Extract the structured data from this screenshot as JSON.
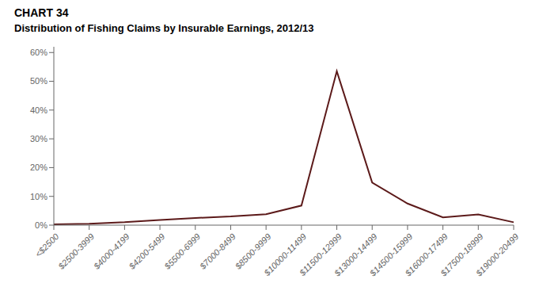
{
  "chart_data": {
    "type": "line",
    "title": "CHART 34",
    "subtitle": "Distribution of Fishing Claims by Insurable Earnings, 2012/13",
    "categories": [
      "<$2500",
      "$2500-3999",
      "$4000-4199",
      "$4200-5499",
      "$5500-6999",
      "$7000-8499",
      "$8500-9999",
      "$10000-11499",
      "$11500-12999",
      "$13000-14499",
      "$14500-15999",
      "$16000-17499",
      "$17500-18999",
      "$19000-20499"
    ],
    "values": [
      0.003,
      0.005,
      0.01,
      0.018,
      0.025,
      0.03,
      0.038,
      0.068,
      0.535,
      0.148,
      0.075,
      0.027,
      0.037,
      0.01
    ],
    "color": "#5C1A1A",
    "ylim": [
      0,
      0.62
    ],
    "yticks": [
      {
        "value": 0,
        "label": "0%"
      },
      {
        "value": 0.1,
        "label": "10%"
      },
      {
        "value": 0.2,
        "label": "20%"
      },
      {
        "value": 0.3,
        "label": "30%"
      },
      {
        "value": 0.4,
        "label": "40%"
      },
      {
        "value": 0.5,
        "label": "50%"
      },
      {
        "value": 0.6,
        "label": "60%"
      }
    ],
    "grid": false
  }
}
